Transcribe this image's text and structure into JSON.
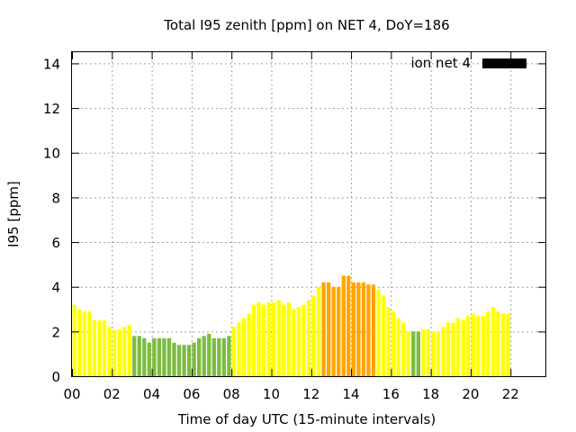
{
  "chart_data": {
    "type": "bar",
    "title": "Total I95 zenith [ppm] on NET 4, DoY=186",
    "xlabel": "Time of day UTC (15-minute intervals)",
    "ylabel": "I95 [ppm]",
    "legend": {
      "label": "ion net 4",
      "position": "top-right",
      "color": "#000000"
    },
    "xlim": [
      0,
      23.75
    ],
    "ylim": [
      0,
      14.5
    ],
    "xticks": [
      0,
      2,
      4,
      6,
      8,
      10,
      12,
      14,
      16,
      18,
      20,
      22
    ],
    "xtick_labels": [
      "00",
      "02",
      "04",
      "06",
      "08",
      "10",
      "12",
      "14",
      "16",
      "18",
      "20",
      "22"
    ],
    "yticks": [
      0,
      2,
      4,
      6,
      8,
      10,
      12,
      14
    ],
    "ytick_labels": [
      "0",
      "2",
      "4",
      "6",
      "8",
      "10",
      "12",
      "14"
    ],
    "grid": true,
    "interval_hours": 0.25,
    "colors": {
      "low": "#7dbb42",
      "mid": "#ffff00",
      "high": "#ffa500"
    },
    "values": [
      3.2,
      3.0,
      2.9,
      2.9,
      2.5,
      2.5,
      2.5,
      2.2,
      2.1,
      2.1,
      2.2,
      2.3,
      1.8,
      1.8,
      1.7,
      1.5,
      1.7,
      1.7,
      1.7,
      1.7,
      1.5,
      1.4,
      1.4,
      1.4,
      1.5,
      1.7,
      1.8,
      1.9,
      1.7,
      1.7,
      1.7,
      1.8,
      2.2,
      2.4,
      2.6,
      2.8,
      3.2,
      3.3,
      3.2,
      3.3,
      3.3,
      3.4,
      3.2,
      3.3,
      3.0,
      3.1,
      3.2,
      3.4,
      3.6,
      4.0,
      4.2,
      4.2,
      4.0,
      4.0,
      4.5,
      4.5,
      4.2,
      4.2,
      4.2,
      4.1,
      4.1,
      3.9,
      3.6,
      3.1,
      2.9,
      2.6,
      2.4,
      2.0,
      2.0,
      2.0,
      2.1,
      2.1,
      2.0,
      2.0,
      2.2,
      2.4,
      2.4,
      2.6,
      2.5,
      2.7,
      2.8,
      2.7,
      2.7,
      2.9,
      3.1,
      2.9,
      2.8,
      2.8
    ],
    "value_colors": [
      "mid",
      "mid",
      "mid",
      "mid",
      "mid",
      "mid",
      "mid",
      "mid",
      "mid",
      "mid",
      "mid",
      "mid",
      "low",
      "low",
      "low",
      "low",
      "low",
      "low",
      "low",
      "low",
      "low",
      "low",
      "low",
      "low",
      "low",
      "low",
      "low",
      "low",
      "low",
      "low",
      "low",
      "low",
      "mid",
      "mid",
      "mid",
      "mid",
      "mid",
      "mid",
      "mid",
      "mid",
      "mid",
      "mid",
      "mid",
      "mid",
      "mid",
      "mid",
      "mid",
      "mid",
      "mid",
      "mid",
      "high",
      "high",
      "high",
      "high",
      "high",
      "high",
      "high",
      "high",
      "high",
      "high",
      "high",
      "mid",
      "mid",
      "mid",
      "mid",
      "mid",
      "mid",
      "mid",
      "low",
      "low",
      "mid",
      "mid",
      "mid",
      "mid",
      "mid",
      "mid",
      "mid",
      "mid",
      "mid",
      "mid",
      "mid",
      "mid",
      "mid",
      "mid",
      "mid",
      "mid",
      "mid",
      "mid"
    ]
  }
}
